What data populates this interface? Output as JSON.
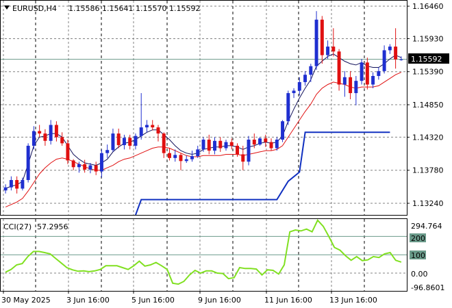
{
  "header": {
    "symbol": "EURUSD,H4",
    "ohlc": "1.15586 1.15641 1.15570 1.15592"
  },
  "price_axis": {
    "labels": [
      "1.16460",
      "1.15930",
      "1.15390",
      "1.14850",
      "1.14320",
      "1.13780",
      "1.13240"
    ],
    "current_price": "1.15592"
  },
  "indicator": {
    "name": "CCI(27)",
    "value": "57.2956",
    "labels": [
      "294.764",
      "200",
      "100",
      "0.00",
      "-96.8601"
    ],
    "levels": [
      200,
      100,
      0
    ]
  },
  "time_axis": {
    "labels": [
      "30 May 2025",
      "3 Jun 16:00",
      "5 Jun 16:00",
      "9 Jun 16:00",
      "11 Jun 16:00",
      "13 Jun 16:00"
    ]
  },
  "colors": {
    "bull": "#1f2fd0",
    "bear": "#e01010",
    "fast_ma": "#10105a",
    "slow_ma": "#e01010",
    "step_line": "#1030c0",
    "cci_line": "#80e020",
    "grid": "#808080",
    "current_price_line": "#6a9a8a"
  },
  "chart_data": [
    {
      "type": "candlestick",
      "title": "EURUSD,H4",
      "ylim": [
        1.1305,
        1.1655
      ],
      "candles": [
        [
          1.1345,
          1.1355,
          1.134,
          1.135
        ],
        [
          1.135,
          1.1368,
          1.1345,
          1.1362
        ],
        [
          1.1362,
          1.1368,
          1.134,
          1.1348
        ],
        [
          1.1348,
          1.1366,
          1.1345,
          1.1362
        ],
        [
          1.1362,
          1.1422,
          1.1358,
          1.1418
        ],
        [
          1.1418,
          1.145,
          1.1412,
          1.1442
        ],
        [
          1.1442,
          1.1452,
          1.1432,
          1.1438
        ],
        [
          1.1438,
          1.1445,
          1.1418,
          1.1426
        ],
        [
          1.1426,
          1.146,
          1.142,
          1.1452
        ],
        [
          1.1452,
          1.1458,
          1.1425,
          1.1432
        ],
        [
          1.1432,
          1.144,
          1.1418,
          1.1422
        ],
        [
          1.1422,
          1.1428,
          1.1388,
          1.1394
        ],
        [
          1.1394,
          1.1396,
          1.1378,
          1.1383
        ],
        [
          1.1383,
          1.1392,
          1.1374,
          1.1388
        ],
        [
          1.1388,
          1.1395,
          1.1374,
          1.1379
        ],
        [
          1.1379,
          1.139,
          1.1373,
          1.1386
        ],
        [
          1.1386,
          1.1392,
          1.137,
          1.1376
        ],
        [
          1.1376,
          1.1412,
          1.1366,
          1.1406
        ],
        [
          1.1406,
          1.142,
          1.1398,
          1.1411
        ],
        [
          1.1411,
          1.1446,
          1.1408,
          1.1438
        ],
        [
          1.1438,
          1.1446,
          1.1414,
          1.1419
        ],
        [
          1.1419,
          1.1436,
          1.1412,
          1.1431
        ],
        [
          1.1431,
          1.1436,
          1.1412,
          1.1418
        ],
        [
          1.1418,
          1.1438,
          1.1412,
          1.1434
        ],
        [
          1.1434,
          1.1504,
          1.1428,
          1.1448
        ],
        [
          1.1448,
          1.146,
          1.144,
          1.1452
        ],
        [
          1.1452,
          1.146,
          1.1443,
          1.1448
        ],
        [
          1.1448,
          1.1452,
          1.1425,
          1.1438
        ],
        [
          1.1438,
          1.144,
          1.1398,
          1.1406
        ],
        [
          1.1406,
          1.1414,
          1.1394,
          1.1398
        ],
        [
          1.1398,
          1.1412,
          1.1392,
          1.1403
        ],
        [
          1.1403,
          1.1406,
          1.1378,
          1.1393
        ],
        [
          1.1393,
          1.1402,
          1.139,
          1.1396
        ],
        [
          1.1396,
          1.141,
          1.1392,
          1.1401
        ],
        [
          1.1401,
          1.1418,
          1.1398,
          1.1412
        ],
        [
          1.1412,
          1.1432,
          1.1408,
          1.1428
        ],
        [
          1.1428,
          1.1436,
          1.1404,
          1.141
        ],
        [
          1.141,
          1.1432,
          1.1404,
          1.1426
        ],
        [
          1.1426,
          1.1432,
          1.1408,
          1.1414
        ],
        [
          1.1414,
          1.1428,
          1.141,
          1.1424
        ],
        [
          1.1424,
          1.143,
          1.1412,
          1.1418
        ],
        [
          1.1418,
          1.1422,
          1.14,
          1.1404
        ],
        [
          1.1404,
          1.1418,
          1.1378,
          1.1392
        ],
        [
          1.1392,
          1.1434,
          1.1386,
          1.1428
        ],
        [
          1.1428,
          1.1438,
          1.1414,
          1.142
        ],
        [
          1.142,
          1.1432,
          1.1418,
          1.143
        ],
        [
          1.143,
          1.1436,
          1.1416,
          1.1424
        ],
        [
          1.1424,
          1.143,
          1.141,
          1.1414
        ],
        [
          1.1414,
          1.1432,
          1.141,
          1.1428
        ],
        [
          1.1428,
          1.146,
          1.1424,
          1.1458
        ],
        [
          1.1458,
          1.1508,
          1.1452,
          1.1504
        ],
        [
          1.1504,
          1.1512,
          1.1496,
          1.1508
        ],
        [
          1.1508,
          1.153,
          1.15,
          1.1522
        ],
        [
          1.1522,
          1.154,
          1.1516,
          1.1534
        ],
        [
          1.1534,
          1.1552,
          1.1522,
          1.1548
        ],
        [
          1.1548,
          1.1638,
          1.1542,
          1.1624
        ],
        [
          1.1624,
          1.163,
          1.1552,
          1.1566
        ],
        [
          1.1566,
          1.159,
          1.156,
          1.158
        ],
        [
          1.158,
          1.161,
          1.1564,
          1.1572
        ],
        [
          1.1572,
          1.1576,
          1.1508,
          1.1518
        ],
        [
          1.1518,
          1.154,
          1.1498,
          1.153
        ],
        [
          1.153,
          1.154,
          1.1494,
          1.1504
        ],
        [
          1.1504,
          1.1532,
          1.1484,
          1.1524
        ],
        [
          1.1524,
          1.156,
          1.1518,
          1.1554
        ],
        [
          1.1554,
          1.1562,
          1.151,
          1.1518
        ],
        [
          1.1518,
          1.1538,
          1.1512,
          1.1532
        ],
        [
          1.1532,
          1.1546,
          1.1526,
          1.154
        ],
        [
          1.154,
          1.1582,
          1.1536,
          1.1574
        ],
        [
          1.1574,
          1.1584,
          1.1568,
          1.158
        ],
        [
          1.158,
          1.161,
          1.1544,
          1.1559
        ],
        [
          1.1559,
          1.1564,
          1.1557,
          1.1559
        ]
      ],
      "fast_ma": [
        1.1348,
        1.1352,
        1.1354,
        1.136,
        1.1388,
        1.1418,
        1.1432,
        1.1434,
        1.1438,
        1.1438,
        1.1432,
        1.1418,
        1.1404,
        1.1396,
        1.139,
        1.1388,
        1.1386,
        1.139,
        1.1396,
        1.1408,
        1.1416,
        1.1422,
        1.1424,
        1.1428,
        1.1434,
        1.144,
        1.1444,
        1.1444,
        1.1436,
        1.1428,
        1.1418,
        1.141,
        1.1406,
        1.1404,
        1.1406,
        1.1412,
        1.1414,
        1.1416,
        1.1416,
        1.1418,
        1.1418,
        1.1416,
        1.1412,
        1.1416,
        1.1418,
        1.1422,
        1.1424,
        1.1422,
        1.1424,
        1.1434,
        1.1458,
        1.1478,
        1.1496,
        1.1512,
        1.1526,
        1.1548,
        1.1556,
        1.1564,
        1.1568,
        1.1562,
        1.1556,
        1.1552,
        1.155,
        1.1554,
        1.1548,
        1.1546,
        1.1546,
        1.1552,
        1.156,
        1.1566,
        1.1562
      ],
      "slow_ma": [
        1.1318,
        1.1322,
        1.1326,
        1.1332,
        1.1344,
        1.1358,
        1.1372,
        1.1382,
        1.139,
        1.1396,
        1.1398,
        1.1396,
        1.1392,
        1.1388,
        1.1384,
        1.138,
        1.1378,
        1.1378,
        1.1382,
        1.1386,
        1.1392,
        1.1396,
        1.1398,
        1.1402,
        1.1406,
        1.141,
        1.1414,
        1.1416,
        1.1416,
        1.1414,
        1.141,
        1.1406,
        1.1402,
        1.14,
        1.14,
        1.1402,
        1.1402,
        1.1402,
        1.1402,
        1.1404,
        1.1404,
        1.1404,
        1.1402,
        1.1404,
        1.1406,
        1.1408,
        1.141,
        1.141,
        1.1412,
        1.1418,
        1.1432,
        1.1446,
        1.146,
        1.1474,
        1.1486,
        1.1502,
        1.1512,
        1.1518,
        1.1522,
        1.152,
        1.1518,
        1.1514,
        1.1512,
        1.1514,
        1.1514,
        1.1514,
        1.1516,
        1.1522,
        1.1528,
        1.1534,
        1.1538
      ],
      "step_line": [
        [
          23,
          1.129
        ],
        [
          24,
          1.133
        ],
        [
          48,
          1.133
        ],
        [
          50,
          1.136
        ],
        [
          52,
          1.1375
        ],
        [
          53,
          1.144
        ],
        [
          68,
          1.144
        ]
      ]
    },
    {
      "type": "line",
      "title": "CCI(27)",
      "ylim": [
        -96.8601,
        294.764
      ],
      "values": [
        5,
        20,
        45,
        52,
        90,
        118,
        118,
        112,
        105,
        80,
        55,
        30,
        18,
        10,
        12,
        8,
        12,
        20,
        40,
        40,
        40,
        30,
        20,
        40,
        65,
        38,
        45,
        58,
        40,
        20,
        -55,
        -60,
        -45,
        -10,
        15,
        0,
        12,
        12,
        0,
        -2,
        -30,
        -25,
        30,
        25,
        25,
        22,
        -10,
        18,
        15,
        -5,
        45,
        225,
        235,
        230,
        240,
        225,
        288,
        255,
        200,
        140,
        125,
        95,
        70,
        90,
        68,
        72,
        90,
        85,
        105,
        112,
        70,
        60
      ]
    }
  ]
}
